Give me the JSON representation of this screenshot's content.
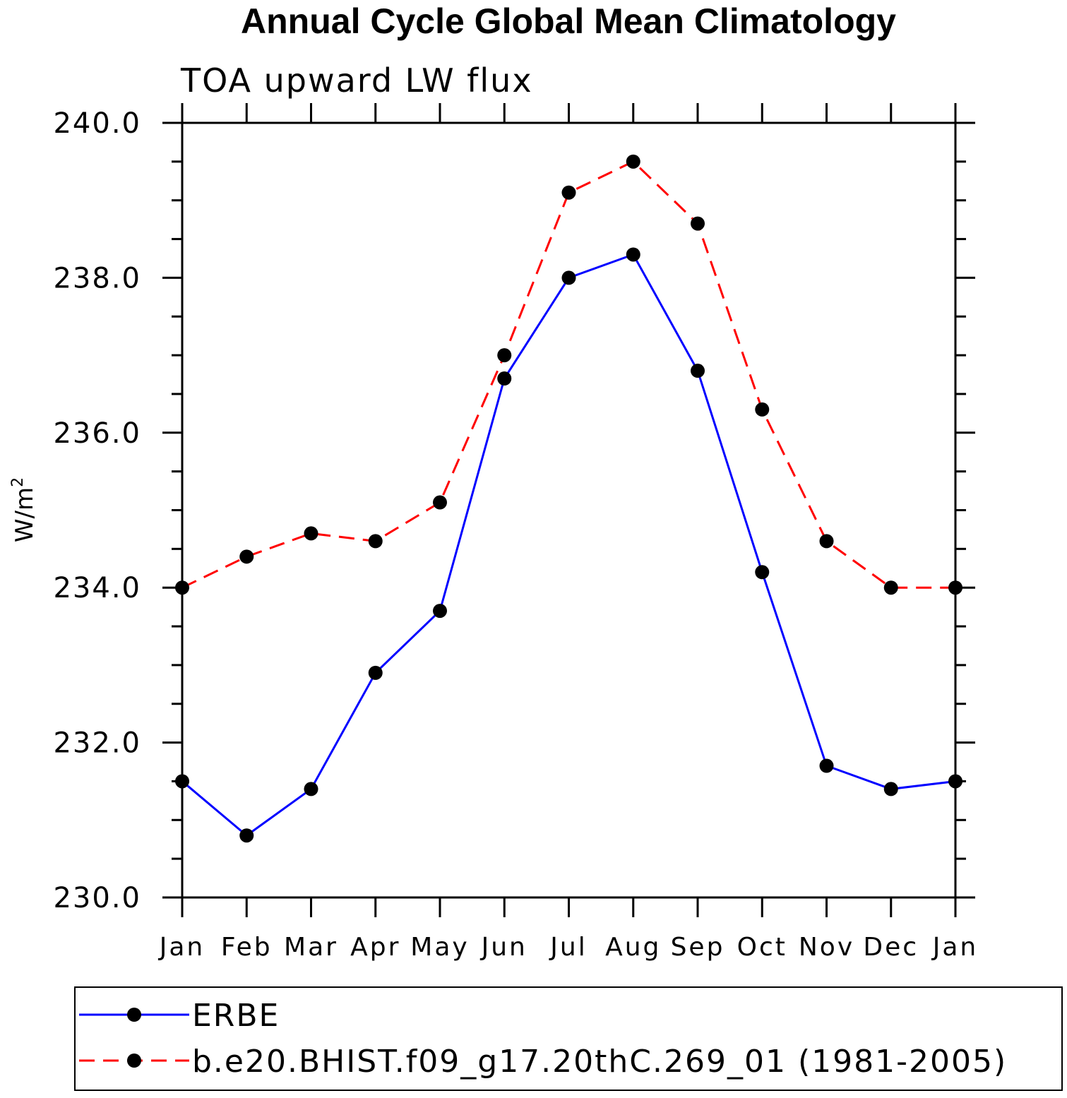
{
  "colors": {
    "background": "#ffffff",
    "axis": "#000000",
    "erbe_series": "#0000ff",
    "model_series": "#ff0000",
    "marker": "#000000"
  },
  "chart_data": {
    "type": "line",
    "title": "Annual Cycle Global Mean Climatology",
    "subtitle": "TOA upward LW flux",
    "xlabel": "",
    "ylabel": "W/m",
    "ylabel_superscript": "2",
    "ylim": [
      230.0,
      240.0
    ],
    "yticks": [
      "230.0",
      "232.0",
      "234.0",
      "236.0",
      "238.0",
      "240.0"
    ],
    "ytick_values": [
      230,
      232,
      234,
      236,
      238,
      240
    ],
    "y_minor_step": 0.5,
    "categories": [
      "Jan",
      "Feb",
      "Mar",
      "Apr",
      "May",
      "Jun",
      "Jul",
      "Aug",
      "Sep",
      "Oct",
      "Nov",
      "Dec",
      "Jan"
    ],
    "grid": false,
    "legend_position": "bottom",
    "series": [
      {
        "name": "ERBE",
        "line_style": "solid",
        "color": "#0000ff",
        "values": [
          231.5,
          230.8,
          231.4,
          232.9,
          233.7,
          236.7,
          238.0,
          238.3,
          236.8,
          234.2,
          231.7,
          231.4,
          231.5
        ]
      },
      {
        "name": "b.e20.BHIST.f09_g17.20thC.269_01 (1981-2005)",
        "line_style": "dashed",
        "color": "#ff0000",
        "values": [
          234.0,
          234.4,
          234.7,
          234.6,
          235.1,
          237.0,
          239.1,
          239.5,
          238.7,
          236.3,
          234.6,
          234.0,
          234.0
        ]
      }
    ]
  }
}
